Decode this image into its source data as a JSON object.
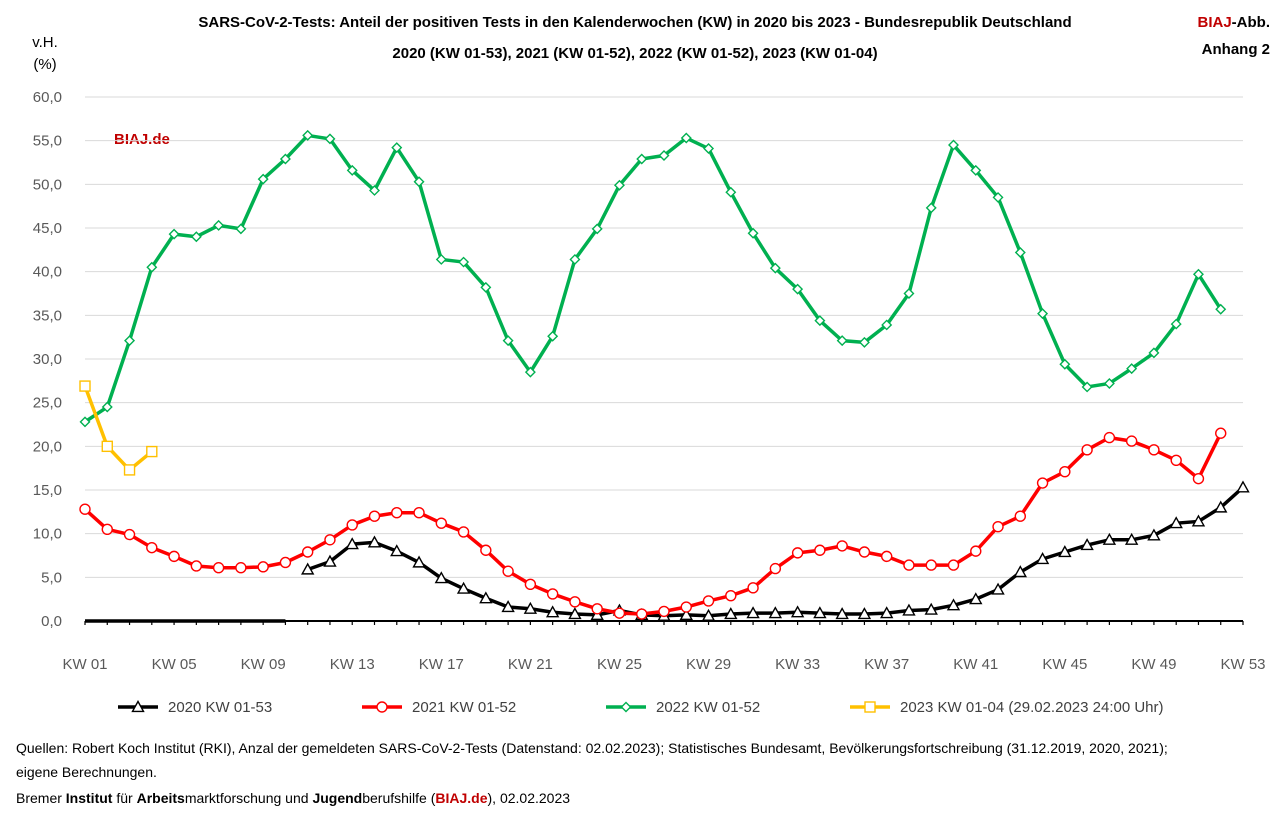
{
  "header": {
    "title_line1": "SARS-CoV-2-Tests: Anteil der positiven Tests in den Kalenderwochen (KW) in 2020 bis 2023 - Bundesrepublik Deutschland",
    "title_line2": "2020 (KW 01-53), 2021 (KW 01-52), 2022 (KW 01-52), 2023 (KW 01-04)",
    "y_unit_line1": "v.H.",
    "y_unit_line2": "(%)",
    "corner_biaj": "BIAJ",
    "corner_abb": "-Abb.",
    "corner_anhang": "Anhang 2",
    "watermark": "BIAJ.de"
  },
  "footer": {
    "source_line1": "Quellen: Robert Koch Institut (RKI), Anzal der gemeldeten SARS-CoV-2-Tests (Datenstand: 02.02.2023); Statistisches Bundesamt, Bevölkerungsfortschreibung (31.12.2019, 2020, 2021);",
    "source_line2": "eigene Berechnungen.",
    "credit_p1": "Bremer ",
    "credit_b1": "Institut",
    "credit_p2": " für ",
    "credit_b2": "Arbeits",
    "credit_p3": "marktforschung und ",
    "credit_b3": "Jugend",
    "credit_p4": "berufshilfe (",
    "credit_link": "BIAJ.de",
    "credit_p5": "), 02.02.2023"
  },
  "chart_data": {
    "type": "line",
    "x_label_ticks": [
      "KW 01",
      "KW 05",
      "KW 09",
      "KW 13",
      "KW 17",
      "KW 21",
      "KW 25",
      "KW 29",
      "KW 33",
      "KW 37",
      "KW 41",
      "KW 45",
      "KW 49",
      "KW 53"
    ],
    "x_range": [
      1,
      53
    ],
    "ylim": [
      0,
      60
    ],
    "y_ticks": [
      "0,0",
      "5,0",
      "10,0",
      "15,0",
      "20,0",
      "25,0",
      "30,0",
      "35,0",
      "40,0",
      "45,0",
      "50,0",
      "55,0",
      "60,0"
    ],
    "grid": "horizontal",
    "legend_position": "bottom",
    "series": [
      {
        "name": "2020 KW 01-53",
        "color": "#000000",
        "marker": "triangle",
        "x": [
          1,
          2,
          3,
          4,
          5,
          6,
          7,
          8,
          9,
          10,
          11,
          12,
          13,
          14,
          15,
          16,
          17,
          18,
          19,
          20,
          21,
          22,
          23,
          24,
          25,
          26,
          27,
          28,
          29,
          30,
          31,
          32,
          33,
          34,
          35,
          36,
          37,
          38,
          39,
          40,
          41,
          42,
          43,
          44,
          45,
          46,
          47,
          48,
          49,
          50,
          51,
          52,
          53
        ],
        "values": [
          0,
          0,
          0,
          0,
          0,
          0,
          0,
          0,
          0,
          0,
          5.9,
          6.8,
          8.8,
          9.0,
          8.0,
          6.7,
          4.9,
          3.7,
          2.6,
          1.6,
          1.4,
          1.0,
          0.8,
          0.7,
          1.2,
          0.7,
          0.6,
          0.7,
          0.6,
          0.8,
          0.9,
          0.9,
          1.0,
          0.9,
          0.8,
          0.8,
          0.9,
          1.2,
          1.3,
          1.8,
          2.5,
          3.6,
          5.6,
          7.1,
          7.9,
          8.7,
          9.3,
          9.3,
          9.8,
          11.2,
          11.4,
          13.0,
          15.3
        ]
      },
      {
        "name": "2021 KW 01-52",
        "color": "#ff0000",
        "marker": "circle",
        "x": [
          1,
          2,
          3,
          4,
          5,
          6,
          7,
          8,
          9,
          10,
          11,
          12,
          13,
          14,
          15,
          16,
          17,
          18,
          19,
          20,
          21,
          22,
          23,
          24,
          25,
          26,
          27,
          28,
          29,
          30,
          31,
          32,
          33,
          34,
          35,
          36,
          37,
          38,
          39,
          40,
          41,
          42,
          43,
          44,
          45,
          46,
          47,
          48,
          49,
          50,
          51,
          52
        ],
        "values": [
          12.8,
          10.5,
          9.9,
          8.4,
          7.4,
          6.3,
          6.1,
          6.1,
          6.2,
          6.7,
          7.9,
          9.3,
          11.0,
          12.0,
          12.4,
          12.4,
          11.2,
          10.2,
          8.1,
          5.7,
          4.2,
          3.1,
          2.2,
          1.4,
          0.9,
          0.8,
          1.1,
          1.6,
          2.3,
          2.9,
          3.8,
          6.0,
          7.8,
          8.1,
          8.6,
          7.9,
          7.4,
          6.4,
          6.4,
          6.4,
          8.0,
          10.8,
          12.0,
          15.8,
          17.1,
          19.6,
          21.0,
          20.6,
          19.6,
          18.4,
          16.3,
          21.5
        ]
      },
      {
        "name": "2022 KW 01-52",
        "color": "#00b050",
        "marker": "diamond",
        "x": [
          1,
          2,
          3,
          4,
          5,
          6,
          7,
          8,
          9,
          10,
          11,
          12,
          13,
          14,
          15,
          16,
          17,
          18,
          19,
          20,
          21,
          22,
          23,
          24,
          25,
          26,
          27,
          28,
          29,
          30,
          31,
          32,
          33,
          34,
          35,
          36,
          37,
          38,
          39,
          40,
          41,
          42,
          43,
          44,
          45,
          46,
          47,
          48,
          49,
          50,
          51,
          52
        ],
        "values": [
          22.8,
          24.5,
          32.1,
          40.5,
          44.3,
          44.0,
          45.3,
          44.9,
          50.6,
          52.9,
          55.6,
          55.2,
          51.6,
          49.3,
          54.2,
          50.3,
          41.4,
          41.1,
          38.2,
          32.1,
          28.5,
          32.6,
          41.4,
          44.9,
          49.9,
          52.9,
          53.3,
          55.3,
          54.1,
          49.1,
          44.4,
          40.4,
          38.0,
          34.4,
          32.1,
          31.9,
          33.9,
          37.5,
          47.3,
          54.5,
          51.6,
          48.5,
          42.2,
          35.2,
          29.4,
          26.8,
          27.2,
          28.9,
          30.7,
          34.0,
          39.7,
          35.7
        ]
      },
      {
        "name": "2023 KW 01-04 (29.02.2023 24:00 Uhr)",
        "color": "#ffc000",
        "marker": "square",
        "x": [
          1,
          2,
          3,
          4
        ],
        "values": [
          26.9,
          20.0,
          17.3,
          19.4
        ]
      }
    ]
  }
}
